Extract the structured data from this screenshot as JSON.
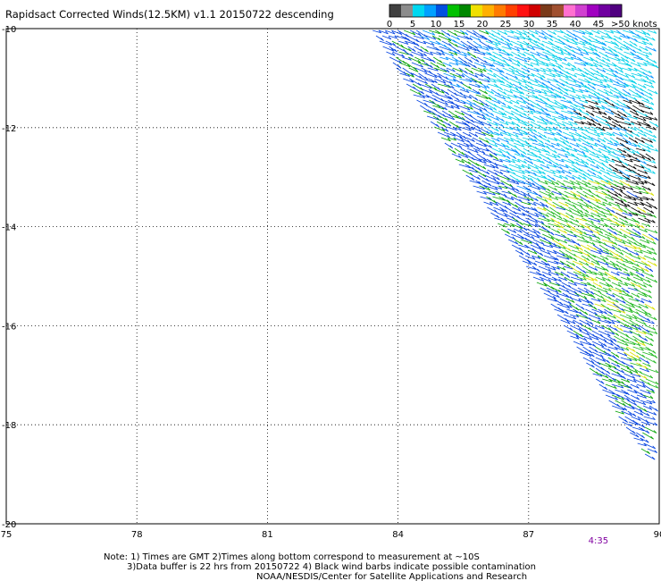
{
  "chart_data": {
    "type": "scatter",
    "title": "Rapidsact Corrected Winds(12.5KM) v1.1 20150722 descending",
    "xlim": [
      75,
      90
    ],
    "ylim": [
      -20,
      -10
    ],
    "x_ticks": [
      75,
      78,
      81,
      84,
      87,
      90
    ],
    "y_ticks": [
      -10,
      -12,
      -14,
      -16,
      -18,
      -20
    ],
    "x_tick_labels": [
      "75",
      "78",
      "81",
      "84",
      "87",
      "90"
    ],
    "y_tick_labels": [
      "-10",
      "-12",
      "-14",
      "-16",
      "-18",
      "-20"
    ],
    "grid": true,
    "color_scale": {
      "labels": [
        "0",
        "5",
        "10",
        "15",
        "20",
        "25",
        "30",
        "35",
        "40",
        "45",
        ">50 knots"
      ],
      "colors": [
        "#404040",
        "#8c8c8c",
        "#00d8f0",
        "#00a0ff",
        "#0050e0",
        "#00c000",
        "#008800",
        "#f0e000",
        "#ffb000",
        "#ff7a00",
        "#ff4000",
        "#ff1010",
        "#d00000",
        "#7a3a1a",
        "#a05030",
        "#ff70d0",
        "#d040d0",
        "#a000c0",
        "#7000a0",
        "#500080"
      ]
    },
    "swath": {
      "edge_points": [
        {
          "lon": 83.35,
          "lat": -10.0
        },
        {
          "lon": 84.5,
          "lat": -11.6
        },
        {
          "lon": 86.0,
          "lat": -13.6
        },
        {
          "lon": 87.5,
          "lat": -15.6
        },
        {
          "lon": 89.0,
          "lat": -17.8
        },
        {
          "lon": 90.0,
          "lat": -19.05
        }
      ]
    },
    "time_label": {
      "text": "4:35",
      "lon": 88.7,
      "color": "#8000a0"
    }
  },
  "footer": {
    "line1": "Note: 1) Times are GMT 2)Times along bottom correspond to measurement at ~10S",
    "line2": "3)Data buffer is 22 hrs from 20150722 4) Black wind barbs indicate possible contamination",
    "line3": "NOAA/NESDIS/Center for Satellite Applications and Research"
  }
}
